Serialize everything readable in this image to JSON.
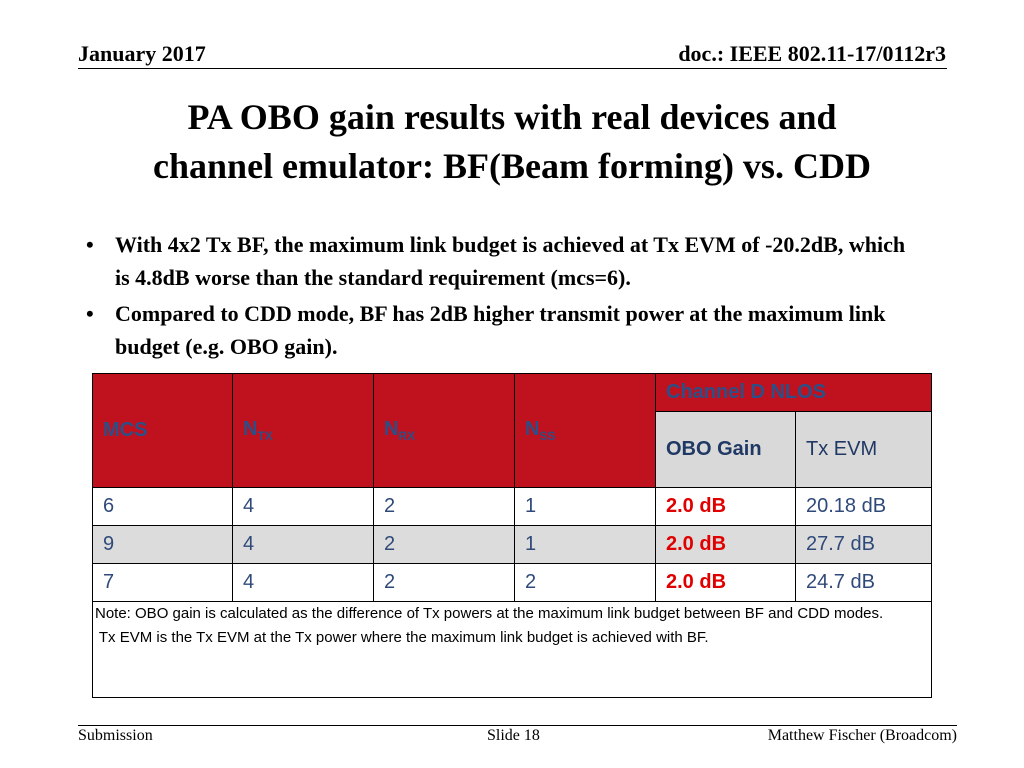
{
  "header": {
    "date": "January 2017",
    "doc_id": "doc.: IEEE 802.11-17/0112r3"
  },
  "title": {
    "line1": "PA OBO gain results with real devices and",
    "line2": "channel emulator: BF(Beam forming) vs. CDD"
  },
  "bullets": [
    {
      "mark": "•",
      "text": "With 4x2 Tx BF, the maximum link budget is achieved at Tx EVM of -20.2dB, which is 4.8dB worse than the standard requirement (mcs=6)."
    },
    {
      "mark": "•",
      "text": "Compared to CDD mode, BF has 2dB higher transmit power at the maximum link budget (e.g. OBO gain)."
    }
  ],
  "table": {
    "headers": {
      "mcs": "MCS",
      "ntx": {
        "base": "N",
        "sub": "TX"
      },
      "nrx": {
        "base": "N",
        "sub": "RX"
      },
      "nss": {
        "base": "N",
        "sub": "SS"
      },
      "group": "Channel D NLOS",
      "obo_gain": "OBO Gain",
      "tx_evm": "Tx EVM"
    },
    "rows": [
      {
        "mcs": "6",
        "ntx": "4",
        "nrx": "2",
        "nss": "1",
        "obo_gain": "2.0 dB",
        "tx_evm": "20.18 dB"
      },
      {
        "mcs": "9",
        "ntx": "4",
        "nrx": "2",
        "nss": "1",
        "obo_gain": "2.0 dB",
        "tx_evm": "27.7 dB"
      },
      {
        "mcs": "7",
        "ntx": "4",
        "nrx": "2",
        "nss": "2",
        "obo_gain": "2.0 dB",
        "tx_evm": "24.7 dB"
      }
    ],
    "note": {
      "line1": "Note: OBO gain is calculated as the difference of Tx powers at the maximum link budget between BF and CDD modes.",
      "line2": " Tx EVM is the Tx EVM at the Tx power where the maximum link budget is achieved with BF."
    }
  },
  "footer": {
    "left": "Submission",
    "center": "Slide 18",
    "right": "Matthew Fischer (Broadcom)"
  },
  "colors": {
    "header_red": "#c0111f",
    "header_text_blue": "#2b4f86",
    "value_red": "#e00000",
    "row_gray": "#dcdcdc"
  }
}
